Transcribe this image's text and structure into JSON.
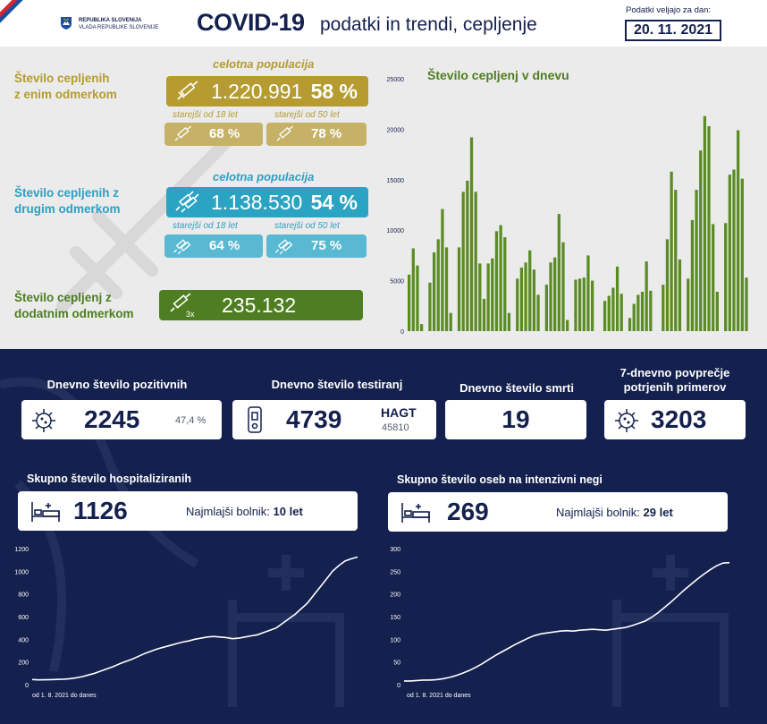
{
  "header": {
    "gov_line1": "REPUBLIKA SLOVENIJA",
    "gov_line2": "VLADA REPUBLIKE SLOVENIJE",
    "title": "COVID-19",
    "subtitle": "podatki in trendi, cepljenje",
    "date_label": "Podatki veljajo za dan:",
    "date": "20. 11. 2021"
  },
  "vaccination": {
    "first_dose": {
      "label_line1": "Število cepljenih",
      "label_line2": "z enim odmerkom",
      "population_label": "celotna populacija",
      "total": "1.220.991",
      "total_pct": "58 %",
      "over18_label": "starejši od 18 let",
      "over18_pct": "68 %",
      "over50_label": "starejši od 50 let",
      "over50_pct": "78 %"
    },
    "second_dose": {
      "label_line1": "Število cepljenih z",
      "label_line2": "drugim odmerkom",
      "population_label": "celotna populacija",
      "total": "1.138.530",
      "total_pct": "54 %",
      "over18_label": "starejši od 18 let",
      "over18_pct": "64 %",
      "over50_label": "starejši od 50 let",
      "over50_pct": "75 %"
    },
    "booster": {
      "label_line1": "Število cepljenj z",
      "label_line2": "dodatnim odmerkom",
      "badge": "3x",
      "total": "235.132"
    }
  },
  "stats": {
    "positive": {
      "title": "Dnevno število pozitivnih",
      "value": "2245",
      "pct": "47,4 %"
    },
    "tested": {
      "title": "Dnevno število testiranj",
      "value": "4739",
      "hagt_label": "HAGT",
      "hagt_value": "45810"
    },
    "deaths": {
      "title": "Dnevno število smrti",
      "value": "19"
    },
    "avg7": {
      "title_line1": "7-dnevno povprečje",
      "title_line2": "potrjenih primerov",
      "value": "3203"
    }
  },
  "hospital": {
    "title": "Skupno število hospitaliziranih",
    "value": "1126",
    "youngest_label": "Najmlajši bolnik:",
    "youngest_value": "10 let",
    "since_label": "od 1. 8. 2021 do danes"
  },
  "icu": {
    "title": "Skupno število oseb na intenzivni negi",
    "value": "269",
    "youngest_label": "Najmlajši bolnik:",
    "youngest_value": "29 let",
    "since_label": "od 1. 8. 2021 do danes"
  },
  "colors": {
    "navy": "#14204d",
    "gold": "#b59b30",
    "teal": "#2ba4c4",
    "green": "#4f7e22",
    "bar_green": "#5b8c24"
  },
  "chart_data": [
    {
      "type": "bar",
      "title": "Število cepljenj v dnevu",
      "ylim": [
        0,
        25000
      ],
      "yticks": [
        "0",
        "5000",
        "10000",
        "15000",
        "20000",
        "25000"
      ],
      "values": [
        5600,
        8200,
        6500,
        700,
        0,
        4800,
        7800,
        9100,
        12100,
        8300,
        1800,
        0,
        8300,
        13800,
        14900,
        19200,
        13800,
        6700,
        3200,
        6700,
        7200,
        9900,
        10500,
        9300,
        1800,
        0,
        5200,
        6300,
        6800,
        8000,
        6100,
        3600,
        0,
        4600,
        6800,
        7300,
        11600,
        8800,
        1100,
        0,
        5100,
        5200,
        5300,
        7500,
        5000,
        0,
        0,
        3000,
        3500,
        4300,
        6400,
        3700,
        0,
        1300,
        2700,
        3600,
        3900,
        6900,
        4000,
        0,
        0,
        4600,
        9100,
        15800,
        14000,
        7100,
        0,
        5200,
        11000,
        14000,
        17900,
        21300,
        20300,
        10600,
        3900,
        0,
        10700,
        15500,
        16000,
        19900,
        15100,
        5300
      ],
      "xlabel": "",
      "ylabel": ""
    },
    {
      "type": "line",
      "series_label": "hospitalizirani",
      "ylim": [
        0,
        1200
      ],
      "yticks": [
        "0",
        "200",
        "400",
        "600",
        "800",
        "1000",
        "1200"
      ],
      "values": [
        45,
        42,
        43,
        44,
        46,
        48,
        52,
        60,
        70,
        85,
        100,
        120,
        140,
        160,
        185,
        205,
        225,
        250,
        275,
        295,
        315,
        330,
        345,
        360,
        375,
        385,
        400,
        410,
        420,
        425,
        420,
        415,
        405,
        410,
        420,
        430,
        440,
        460,
        480,
        500,
        540,
        580,
        620,
        670,
        720,
        790,
        860,
        930,
        1000,
        1050,
        1090,
        1110,
        1126
      ]
    },
    {
      "type": "line",
      "series_label": "intenzivna nega",
      "ylim": [
        0,
        300
      ],
      "yticks": [
        "0",
        "50",
        "100",
        "150",
        "200",
        "250",
        "300"
      ],
      "values": [
        8,
        8,
        9,
        10,
        10,
        11,
        13,
        16,
        20,
        25,
        31,
        38,
        46,
        55,
        64,
        72,
        80,
        88,
        95,
        102,
        108,
        112,
        114,
        116,
        118,
        119,
        118,
        120,
        121,
        122,
        121,
        120,
        122,
        124,
        126,
        130,
        135,
        140,
        148,
        158,
        170,
        182,
        195,
        208,
        220,
        232,
        243,
        253,
        262,
        268,
        269
      ]
    }
  ]
}
